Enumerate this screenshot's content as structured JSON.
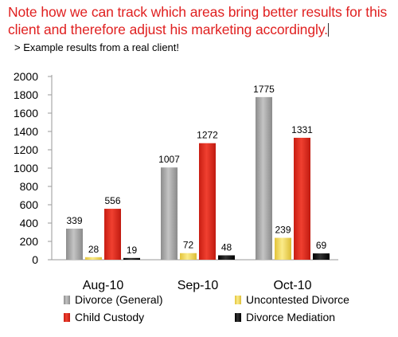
{
  "header": {
    "note": "Note how we can track which areas bring better results for this client and therefore adjust his marketing accordingly.",
    "subtitle": "> Example results from a real client!"
  },
  "colors": {
    "divorce_general": "#a6a6a6",
    "uncontested": "#f2dc5d",
    "child_custody": "#e03020",
    "mediation": "#111111",
    "note_text": "#e02020"
  },
  "chart_data": {
    "type": "bar",
    "title": "",
    "xlabel": "",
    "ylabel": "",
    "categories": [
      "Aug-10",
      "Sep-10",
      "Oct-10"
    ],
    "series": [
      {
        "name": "Divorce (General)",
        "values": [
          339,
          1007,
          1775
        ],
        "color": "#a6a6a6"
      },
      {
        "name": "Uncontested Divorce",
        "values": [
          28,
          72,
          239
        ],
        "color": "#f2dc5d"
      },
      {
        "name": "Child Custody",
        "values": [
          556,
          1272,
          1331
        ],
        "color": "#e03020"
      },
      {
        "name": "Divorce Mediation",
        "values": [
          19,
          48,
          69
        ],
        "color": "#111111"
      }
    ],
    "ylim": [
      0,
      2000
    ],
    "yticks": [
      0,
      200,
      400,
      600,
      800,
      1000,
      1200,
      1400,
      1600,
      1800,
      2000
    ],
    "grid": false,
    "legend_position": "bottom"
  }
}
